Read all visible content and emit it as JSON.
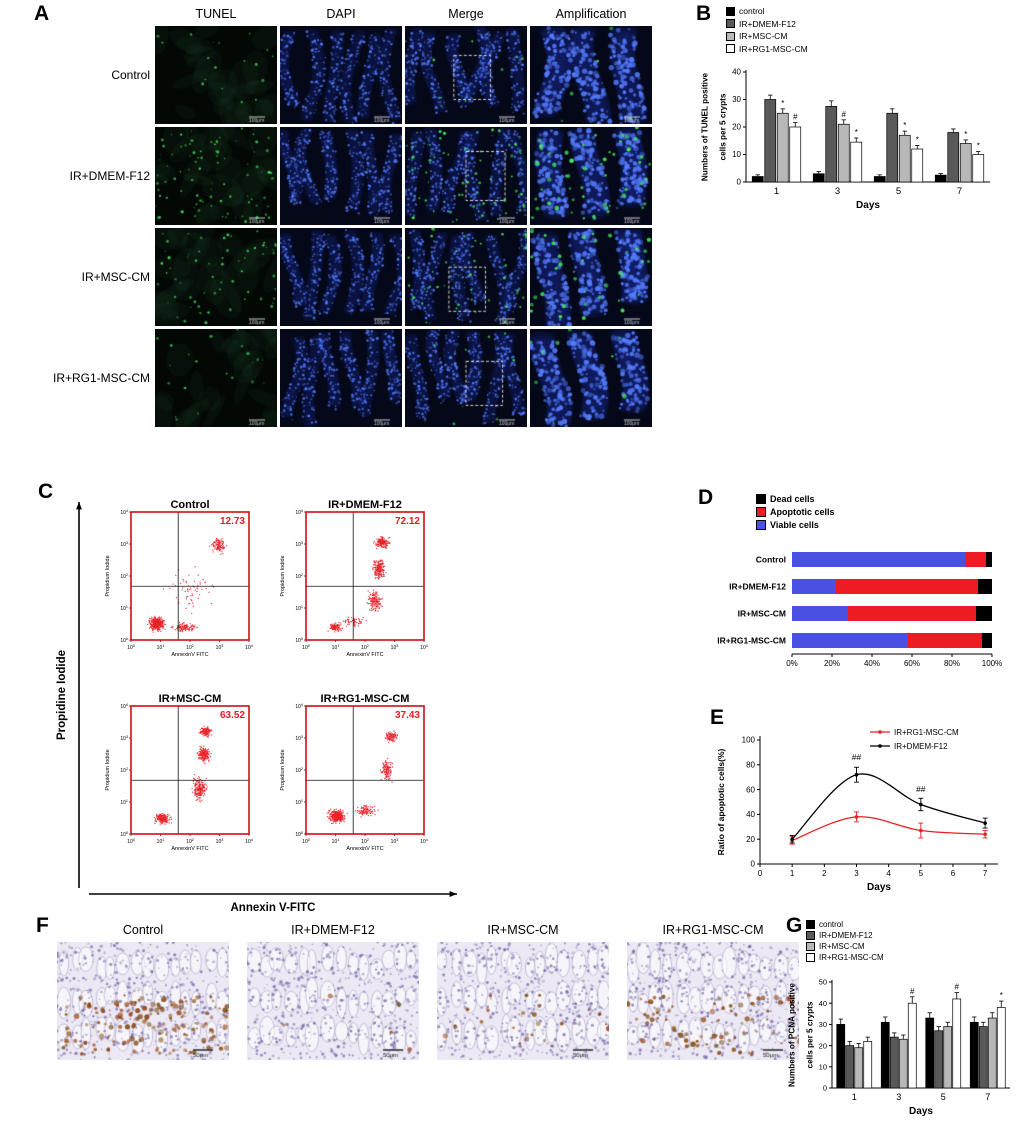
{
  "panels": {
    "A": {
      "label": "A",
      "col_headers": [
        "TUNEL",
        "DAPI",
        "Merge",
        "Amplification"
      ],
      "row_labels": [
        "Control",
        "IR+DMEM-F12",
        "IR+MSC-CM",
        "IR+RG1-MSC-CM"
      ],
      "scale_bar": "100μm"
    },
    "B": {
      "label": "B"
    },
    "C": {
      "label": "C",
      "outer_y_label": "Propidine Iodide",
      "outer_x_label": "Annexin V-FITC"
    },
    "D": {
      "label": "D"
    },
    "E": {
      "label": "E"
    },
    "F": {
      "label": "F",
      "titles": [
        "Control",
        "IR+DMEM-F12",
        "IR+MSC-CM",
        "IR+RG1-MSC-CM"
      ],
      "scale_bar": "50μm"
    },
    "G": {
      "label": "G"
    }
  },
  "chart_data": [
    {
      "id": "B",
      "type": "bar",
      "ylabel": [
        "Numbers of TUNEL positive",
        "cells per 5 crypts"
      ],
      "xlabel": "Days",
      "categories": [
        "1",
        "3",
        "5",
        "7"
      ],
      "ylim": [
        0,
        40
      ],
      "yticks": [
        0,
        10,
        20,
        30,
        40
      ],
      "series": [
        {
          "name": "control",
          "color": "#000000",
          "values": [
            2,
            3,
            2,
            2.5
          ],
          "errors": [
            0.6,
            0.8,
            0.6,
            0.6
          ],
          "marks": [
            "",
            "",
            "",
            ""
          ]
        },
        {
          "name": "IR+DMEM-F12",
          "color": "#595959",
          "values": [
            30,
            27.5,
            25,
            18
          ],
          "errors": [
            1.6,
            2,
            1.6,
            1.3
          ],
          "marks": [
            "",
            "",
            "",
            ""
          ]
        },
        {
          "name": "IR+MSC-CM",
          "color": "#b8b8b8",
          "values": [
            25,
            21,
            17,
            14
          ],
          "errors": [
            1.6,
            1.6,
            1.5,
            1.3
          ],
          "marks": [
            "*",
            "#",
            "*",
            "*"
          ]
        },
        {
          "name": "IR+RG1-MSC-CM",
          "color": "#ffffff",
          "values": [
            20,
            14.5,
            12,
            10
          ],
          "errors": [
            1.6,
            1.5,
            1.3,
            1.1
          ],
          "marks": [
            "#",
            "*",
            "*",
            "*"
          ]
        }
      ]
    },
    {
      "id": "C",
      "type": "flow-scatter",
      "x_axis_label": "AnnexinV FITC",
      "y_axis_label": "Propidium Iodide",
      "tick_exponents": [
        0,
        1,
        2,
        3,
        4
      ],
      "plots": [
        {
          "title": "Control",
          "value": "12.73"
        },
        {
          "title": "IR+DMEM-F12",
          "value": "72.12"
        },
        {
          "title": "IR+MSC-CM",
          "value": "63.52"
        },
        {
          "title": "IR+RG1-MSC-CM",
          "value": "37.43"
        }
      ]
    },
    {
      "id": "D",
      "type": "stacked-bar-horizontal",
      "categories": [
        "Control",
        "IR+DMEM-F12",
        "IR+MSC-CM",
        "IR+RG1-MSC-CM"
      ],
      "xticks": [
        "0%",
        "20%",
        "40%",
        "60%",
        "80%",
        "100%"
      ],
      "legend": [
        {
          "name": "Dead cells",
          "color": "#000000"
        },
        {
          "name": "Apoptotic cells",
          "color": "#ed1c24"
        },
        {
          "name": "Viable cells",
          "color": "#4a50e2"
        }
      ],
      "stacks": [
        {
          "category": "Control",
          "viable": 87,
          "apoptotic": 10,
          "dead": 3
        },
        {
          "category": "IR+DMEM-F12",
          "viable": 22,
          "apoptotic": 71,
          "dead": 7
        },
        {
          "category": "IR+MSC-CM",
          "viable": 28,
          "apoptotic": 64,
          "dead": 8
        },
        {
          "category": "IR+RG1-MSC-CM",
          "viable": 58,
          "apoptotic": 37,
          "dead": 5
        }
      ]
    },
    {
      "id": "E",
      "type": "line",
      "ylabel": "Ratio of apoptotic cells(%)",
      "xlabel": "Days",
      "xticks": [
        0,
        1,
        2,
        3,
        4,
        5,
        6,
        7
      ],
      "yticks": [
        0,
        20,
        40,
        60,
        80,
        100
      ],
      "xlim": [
        0,
        7.4
      ],
      "ylim": [
        0,
        100
      ],
      "series": [
        {
          "name": "IR+RG1-MSC-CM",
          "color": "#ed1c24",
          "x": [
            1,
            3,
            5,
            7
          ],
          "y": [
            19,
            38,
            27,
            24
          ],
          "errors": [
            3,
            4,
            6,
            3
          ]
        },
        {
          "name": "IR+DMEM-F12",
          "color": "#000000",
          "x": [
            1,
            3,
            5,
            7
          ],
          "y": [
            20,
            72,
            48,
            33
          ],
          "errors": [
            3,
            6,
            5,
            4
          ]
        }
      ],
      "annotations": [
        {
          "text": "##",
          "x": 3,
          "y": 84
        },
        {
          "text": "##",
          "x": 5,
          "y": 58
        }
      ]
    },
    {
      "id": "G",
      "type": "bar",
      "ylabel": [
        "Numbers of PCNA positive",
        "cells per 5 crypts"
      ],
      "xlabel": "Days",
      "categories": [
        "1",
        "3",
        "5",
        "7"
      ],
      "ylim": [
        0,
        50
      ],
      "yticks": [
        0,
        10,
        20,
        30,
        40,
        50
      ],
      "series": [
        {
          "name": "control",
          "color": "#000000",
          "values": [
            30,
            31,
            33,
            31
          ],
          "errors": [
            2.5,
            2.5,
            2.5,
            2.5
          ],
          "marks": [
            "",
            "",
            "",
            ""
          ]
        },
        {
          "name": "IR+DMEM-F12",
          "color": "#595959",
          "values": [
            20,
            24,
            27,
            29
          ],
          "errors": [
            2,
            2,
            2,
            2
          ],
          "marks": [
            "",
            "",
            "",
            ""
          ]
        },
        {
          "name": "IR+MSC-CM",
          "color": "#b8b8b8",
          "values": [
            19,
            23,
            29,
            33
          ],
          "errors": [
            2,
            2,
            2,
            2.5
          ],
          "marks": [
            "",
            "",
            "",
            ""
          ]
        },
        {
          "name": "IR+RG1-MSC-CM",
          "color": "#ffffff",
          "values": [
            22,
            40,
            42,
            38
          ],
          "errors": [
            2,
            3,
            3,
            3
          ],
          "marks": [
            "",
            "#",
            "#",
            "*"
          ]
        }
      ]
    }
  ]
}
